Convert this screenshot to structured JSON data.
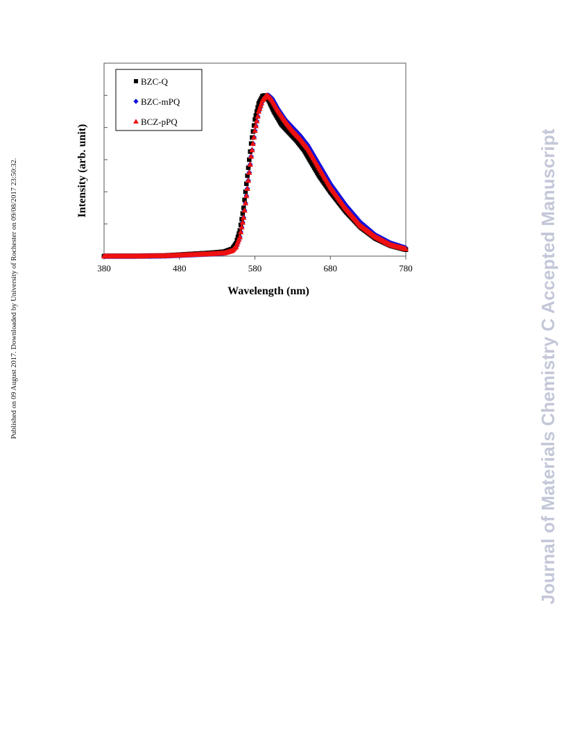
{
  "side_note": "Published on 09 August 2017. Downloaded by University of Rochester on 09/08/2017 23:50:32.",
  "watermark": "Journal of Materials Chemistry C Accepted Manuscript",
  "chart_data": {
    "type": "scatter",
    "title": "",
    "xlabel": "Wavelength (nm)",
    "ylabel": "Intensity (arb. unit)",
    "xlim": [
      380,
      780
    ],
    "ylim": [
      0,
      1.2
    ],
    "x_ticks": [
      380,
      480,
      580,
      680,
      780
    ],
    "x_tick_labels": [
      "380",
      "480",
      "580",
      "680",
      "780"
    ],
    "y_tick_values": [
      0.2,
      0.4,
      0.6,
      0.8,
      1.0
    ],
    "y_tick_labels_shown": false,
    "grid": false,
    "legend_position": "top-left",
    "series": [
      {
        "name": "BZC-Q",
        "marker": "square",
        "color": "#000000",
        "points": [
          [
            380,
            0
          ],
          [
            420,
            0
          ],
          [
            460,
            0.003
          ],
          [
            490,
            0.012
          ],
          [
            520,
            0.02
          ],
          [
            540,
            0.028
          ],
          [
            550,
            0.045
          ],
          [
            555,
            0.08
          ],
          [
            560,
            0.16
          ],
          [
            565,
            0.3
          ],
          [
            570,
            0.5
          ],
          [
            575,
            0.7
          ],
          [
            580,
            0.85
          ],
          [
            585,
            0.95
          ],
          [
            590,
            0.995
          ],
          [
            593,
            1.0
          ],
          [
            598,
            0.97
          ],
          [
            605,
            0.9
          ],
          [
            615,
            0.82
          ],
          [
            625,
            0.77
          ],
          [
            635,
            0.72
          ],
          [
            645,
            0.66
          ],
          [
            655,
            0.58
          ],
          [
            665,
            0.5
          ],
          [
            680,
            0.4
          ],
          [
            700,
            0.28
          ],
          [
            720,
            0.18
          ],
          [
            740,
            0.11
          ],
          [
            760,
            0.065
          ],
          [
            780,
            0.04
          ]
        ]
      },
      {
        "name": "BZC-mPQ",
        "marker": "diamond",
        "color": "#1111dd",
        "points": [
          [
            380,
            0
          ],
          [
            420,
            0
          ],
          [
            460,
            0.002
          ],
          [
            490,
            0.008
          ],
          [
            520,
            0.014
          ],
          [
            540,
            0.02
          ],
          [
            550,
            0.035
          ],
          [
            555,
            0.06
          ],
          [
            560,
            0.12
          ],
          [
            565,
            0.24
          ],
          [
            570,
            0.42
          ],
          [
            575,
            0.62
          ],
          [
            580,
            0.78
          ],
          [
            585,
            0.9
          ],
          [
            590,
            0.97
          ],
          [
            595,
            0.998
          ],
          [
            598,
            1.0
          ],
          [
            603,
            0.98
          ],
          [
            610,
            0.92
          ],
          [
            620,
            0.85
          ],
          [
            630,
            0.8
          ],
          [
            640,
            0.75
          ],
          [
            650,
            0.69
          ],
          [
            660,
            0.61
          ],
          [
            670,
            0.53
          ],
          [
            680,
            0.45
          ],
          [
            700,
            0.32
          ],
          [
            720,
            0.21
          ],
          [
            740,
            0.13
          ],
          [
            760,
            0.08
          ],
          [
            780,
            0.05
          ]
        ]
      },
      {
        "name": "BCZ-pPQ",
        "marker": "triangle",
        "color": "#ee1111",
        "points": [
          [
            380,
            0
          ],
          [
            420,
            0
          ],
          [
            460,
            0.002
          ],
          [
            490,
            0.008
          ],
          [
            520,
            0.014
          ],
          [
            540,
            0.02
          ],
          [
            550,
            0.035
          ],
          [
            555,
            0.06
          ],
          [
            560,
            0.12
          ],
          [
            565,
            0.24
          ],
          [
            570,
            0.42
          ],
          [
            575,
            0.62
          ],
          [
            580,
            0.78
          ],
          [
            585,
            0.9
          ],
          [
            590,
            0.97
          ],
          [
            595,
            0.998
          ],
          [
            597,
            1.0
          ],
          [
            602,
            0.975
          ],
          [
            610,
            0.91
          ],
          [
            620,
            0.84
          ],
          [
            630,
            0.78
          ],
          [
            640,
            0.73
          ],
          [
            650,
            0.67
          ],
          [
            660,
            0.59
          ],
          [
            670,
            0.51
          ],
          [
            680,
            0.43
          ],
          [
            700,
            0.3
          ],
          [
            720,
            0.19
          ],
          [
            740,
            0.12
          ],
          [
            760,
            0.07
          ],
          [
            780,
            0.045
          ]
        ]
      }
    ]
  }
}
